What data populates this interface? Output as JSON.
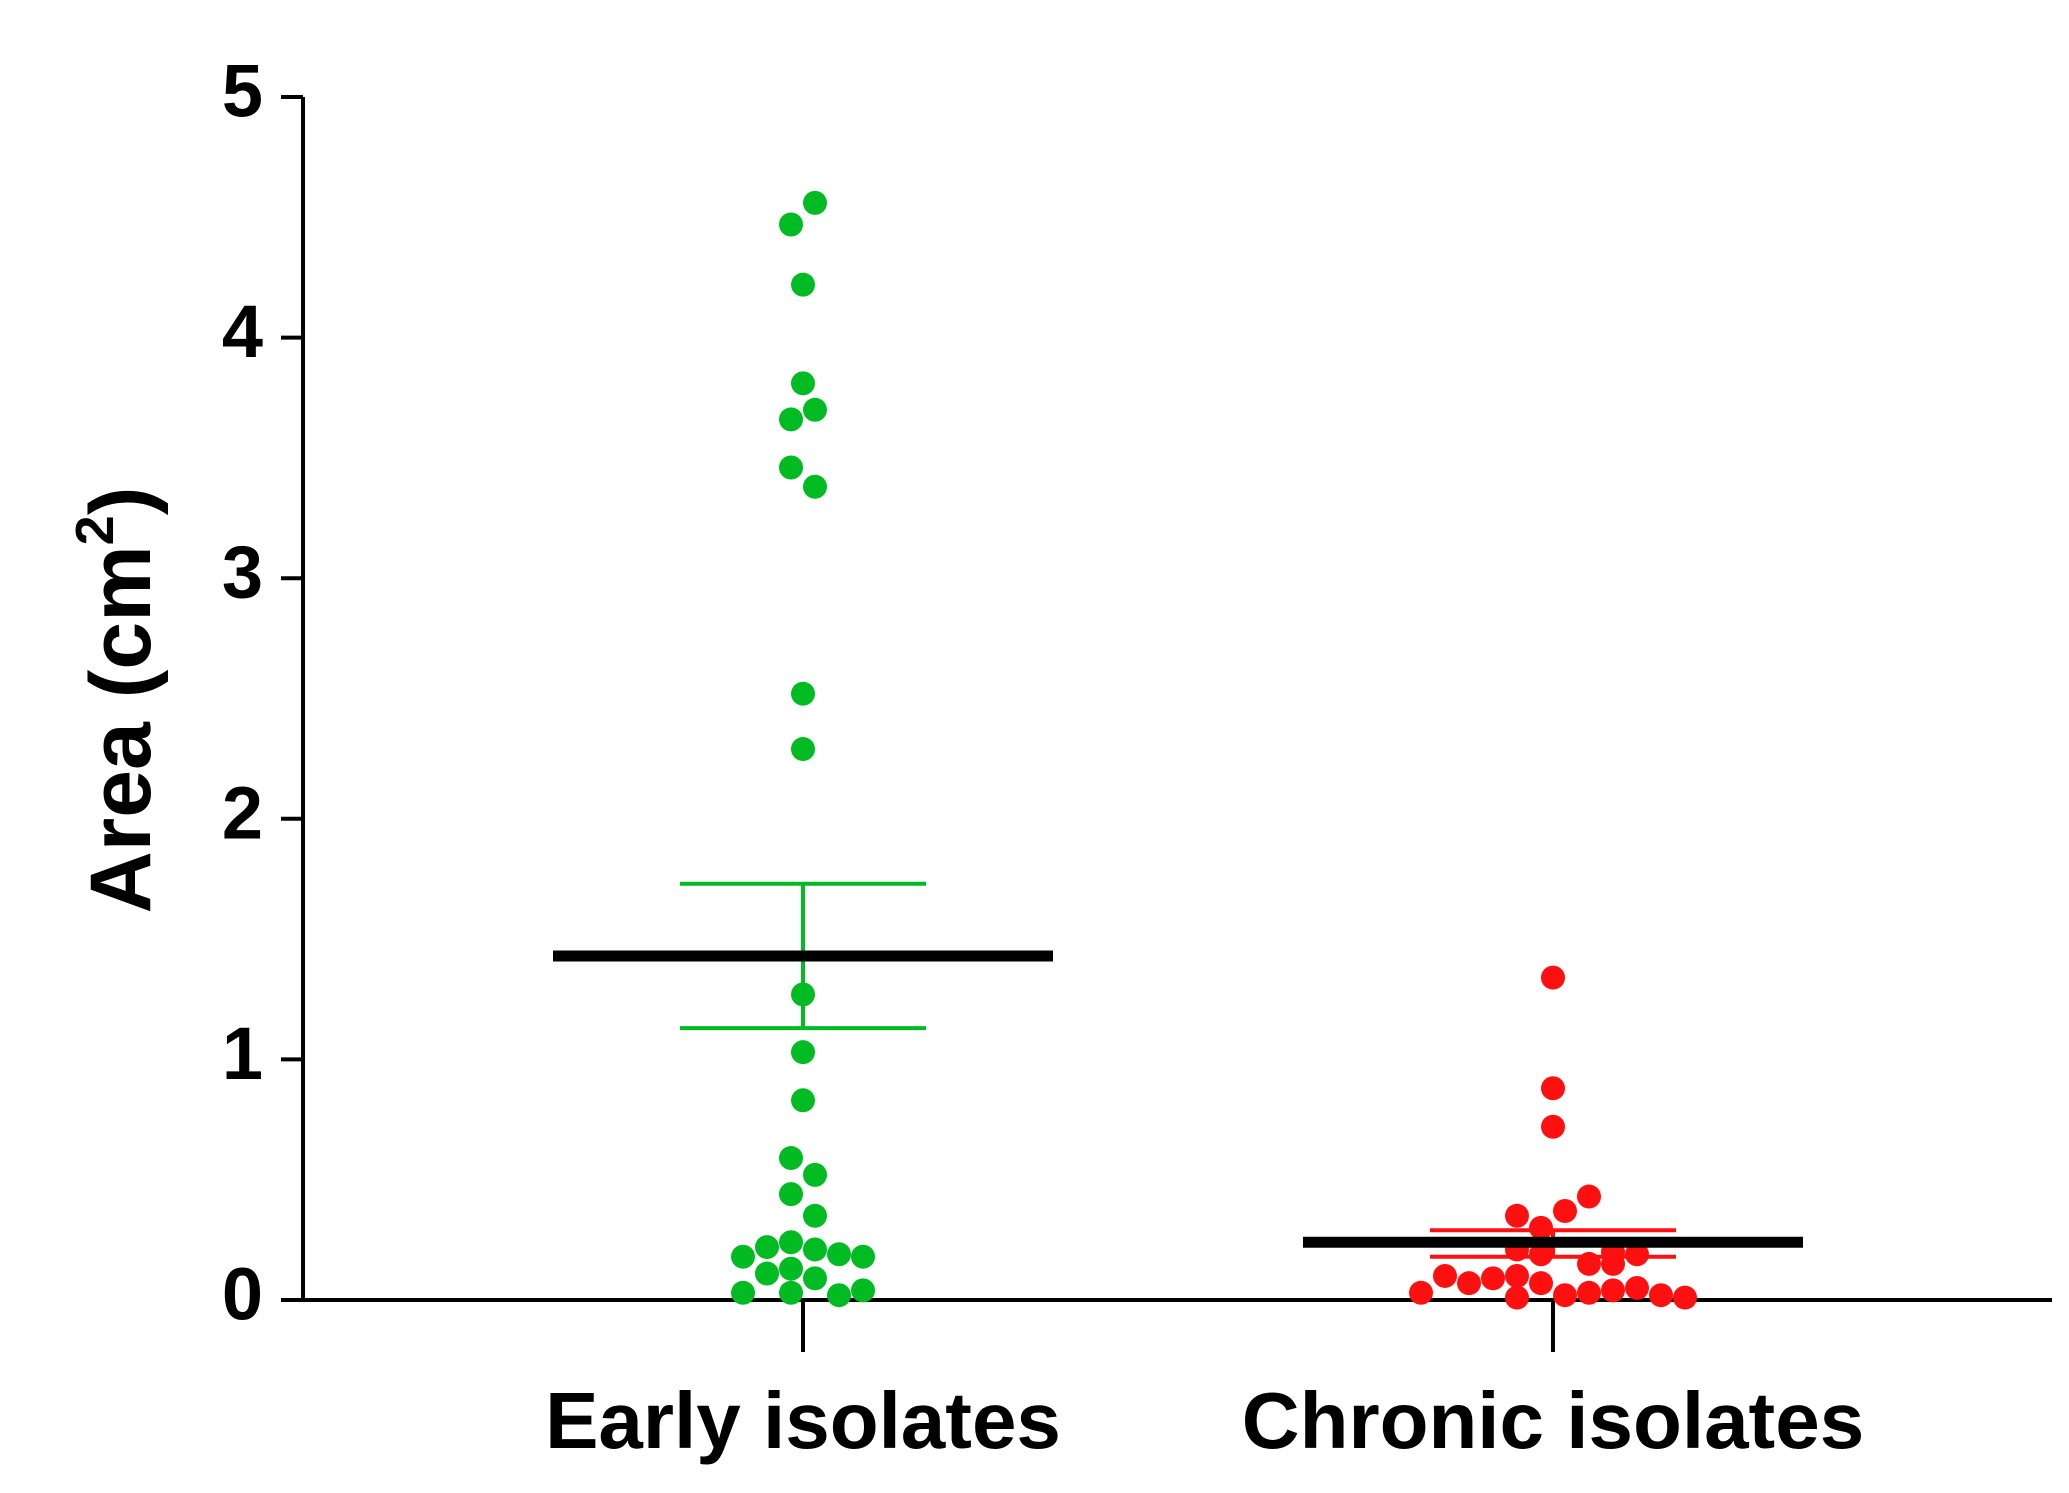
{
  "chart_data": {
    "type": "scatter",
    "title": "",
    "xlabel": "",
    "ylabel": {
      "prefix": "Area (cm",
      "superscript": "2",
      "suffix": ")"
    },
    "ylim": [
      0,
      5
    ],
    "yticks": [
      "0",
      "1",
      "2",
      "3",
      "4",
      "5"
    ],
    "categories": [
      "Early isolates",
      "Chronic isolates"
    ],
    "series": [
      {
        "name": "Early isolates",
        "color": "#00bb22",
        "mean": 1.43,
        "sem_upper": 1.73,
        "sem_lower": 1.13,
        "points": [
          {
            "offset": -0.1,
            "value": 4.47
          },
          {
            "offset": 0.1,
            "value": 4.56
          },
          {
            "offset": 0.0,
            "value": 4.22
          },
          {
            "offset": 0.0,
            "value": 3.81
          },
          {
            "offset": -0.1,
            "value": 3.66
          },
          {
            "offset": 0.1,
            "value": 3.7
          },
          {
            "offset": -0.1,
            "value": 3.46
          },
          {
            "offset": 0.1,
            "value": 3.38
          },
          {
            "offset": 0.0,
            "value": 2.52
          },
          {
            "offset": 0.0,
            "value": 2.29
          },
          {
            "offset": 0.0,
            "value": 1.27
          },
          {
            "offset": 0.0,
            "value": 1.03
          },
          {
            "offset": 0.0,
            "value": 0.83
          },
          {
            "offset": -0.1,
            "value": 0.59
          },
          {
            "offset": 0.1,
            "value": 0.52
          },
          {
            "offset": -0.1,
            "value": 0.44
          },
          {
            "offset": 0.1,
            "value": 0.35
          },
          {
            "offset": -0.5,
            "value": 0.18
          },
          {
            "offset": -0.3,
            "value": 0.22
          },
          {
            "offset": -0.1,
            "value": 0.24
          },
          {
            "offset": 0.1,
            "value": 0.21
          },
          {
            "offset": 0.3,
            "value": 0.19
          },
          {
            "offset": 0.5,
            "value": 0.18
          },
          {
            "offset": -0.3,
            "value": 0.11
          },
          {
            "offset": -0.1,
            "value": 0.13
          },
          {
            "offset": 0.1,
            "value": 0.09
          },
          {
            "offset": -0.5,
            "value": 0.03
          },
          {
            "offset": -0.1,
            "value": 0.03
          },
          {
            "offset": 0.3,
            "value": 0.02
          },
          {
            "offset": 0.5,
            "value": 0.04
          }
        ]
      },
      {
        "name": "Chronic isolates",
        "color": "#ff1010",
        "mean": 0.24,
        "sem_upper": 0.29,
        "sem_lower": 0.18,
        "points": [
          {
            "offset": 0.0,
            "value": 1.34
          },
          {
            "offset": 0.0,
            "value": 0.88
          },
          {
            "offset": 0.0,
            "value": 0.72
          },
          {
            "offset": 0.3,
            "value": 0.43
          },
          {
            "offset": 0.1,
            "value": 0.37
          },
          {
            "offset": -0.3,
            "value": 0.35
          },
          {
            "offset": -0.1,
            "value": 0.3
          },
          {
            "offset": -0.3,
            "value": 0.21
          },
          {
            "offset": -0.1,
            "value": 0.19
          },
          {
            "offset": 0.3,
            "value": 0.15
          },
          {
            "offset": 0.5,
            "value": 0.2
          },
          {
            "offset": 0.7,
            "value": 0.19
          },
          {
            "offset": 0.5,
            "value": 0.15
          },
          {
            "offset": -0.9,
            "value": 0.1
          },
          {
            "offset": -0.5,
            "value": 0.09
          },
          {
            "offset": -0.3,
            "value": 0.1
          },
          {
            "offset": -0.7,
            "value": 0.07
          },
          {
            "offset": -0.1,
            "value": 0.07
          },
          {
            "offset": -1.1,
            "value": 0.03
          },
          {
            "offset": -0.3,
            "value": 0.01
          },
          {
            "offset": 0.1,
            "value": 0.02
          },
          {
            "offset": 0.3,
            "value": 0.03
          },
          {
            "offset": 0.5,
            "value": 0.04
          },
          {
            "offset": 0.7,
            "value": 0.05
          },
          {
            "offset": 0.9,
            "value": 0.02
          },
          {
            "offset": 1.1,
            "value": 0.01
          }
        ]
      }
    ]
  }
}
